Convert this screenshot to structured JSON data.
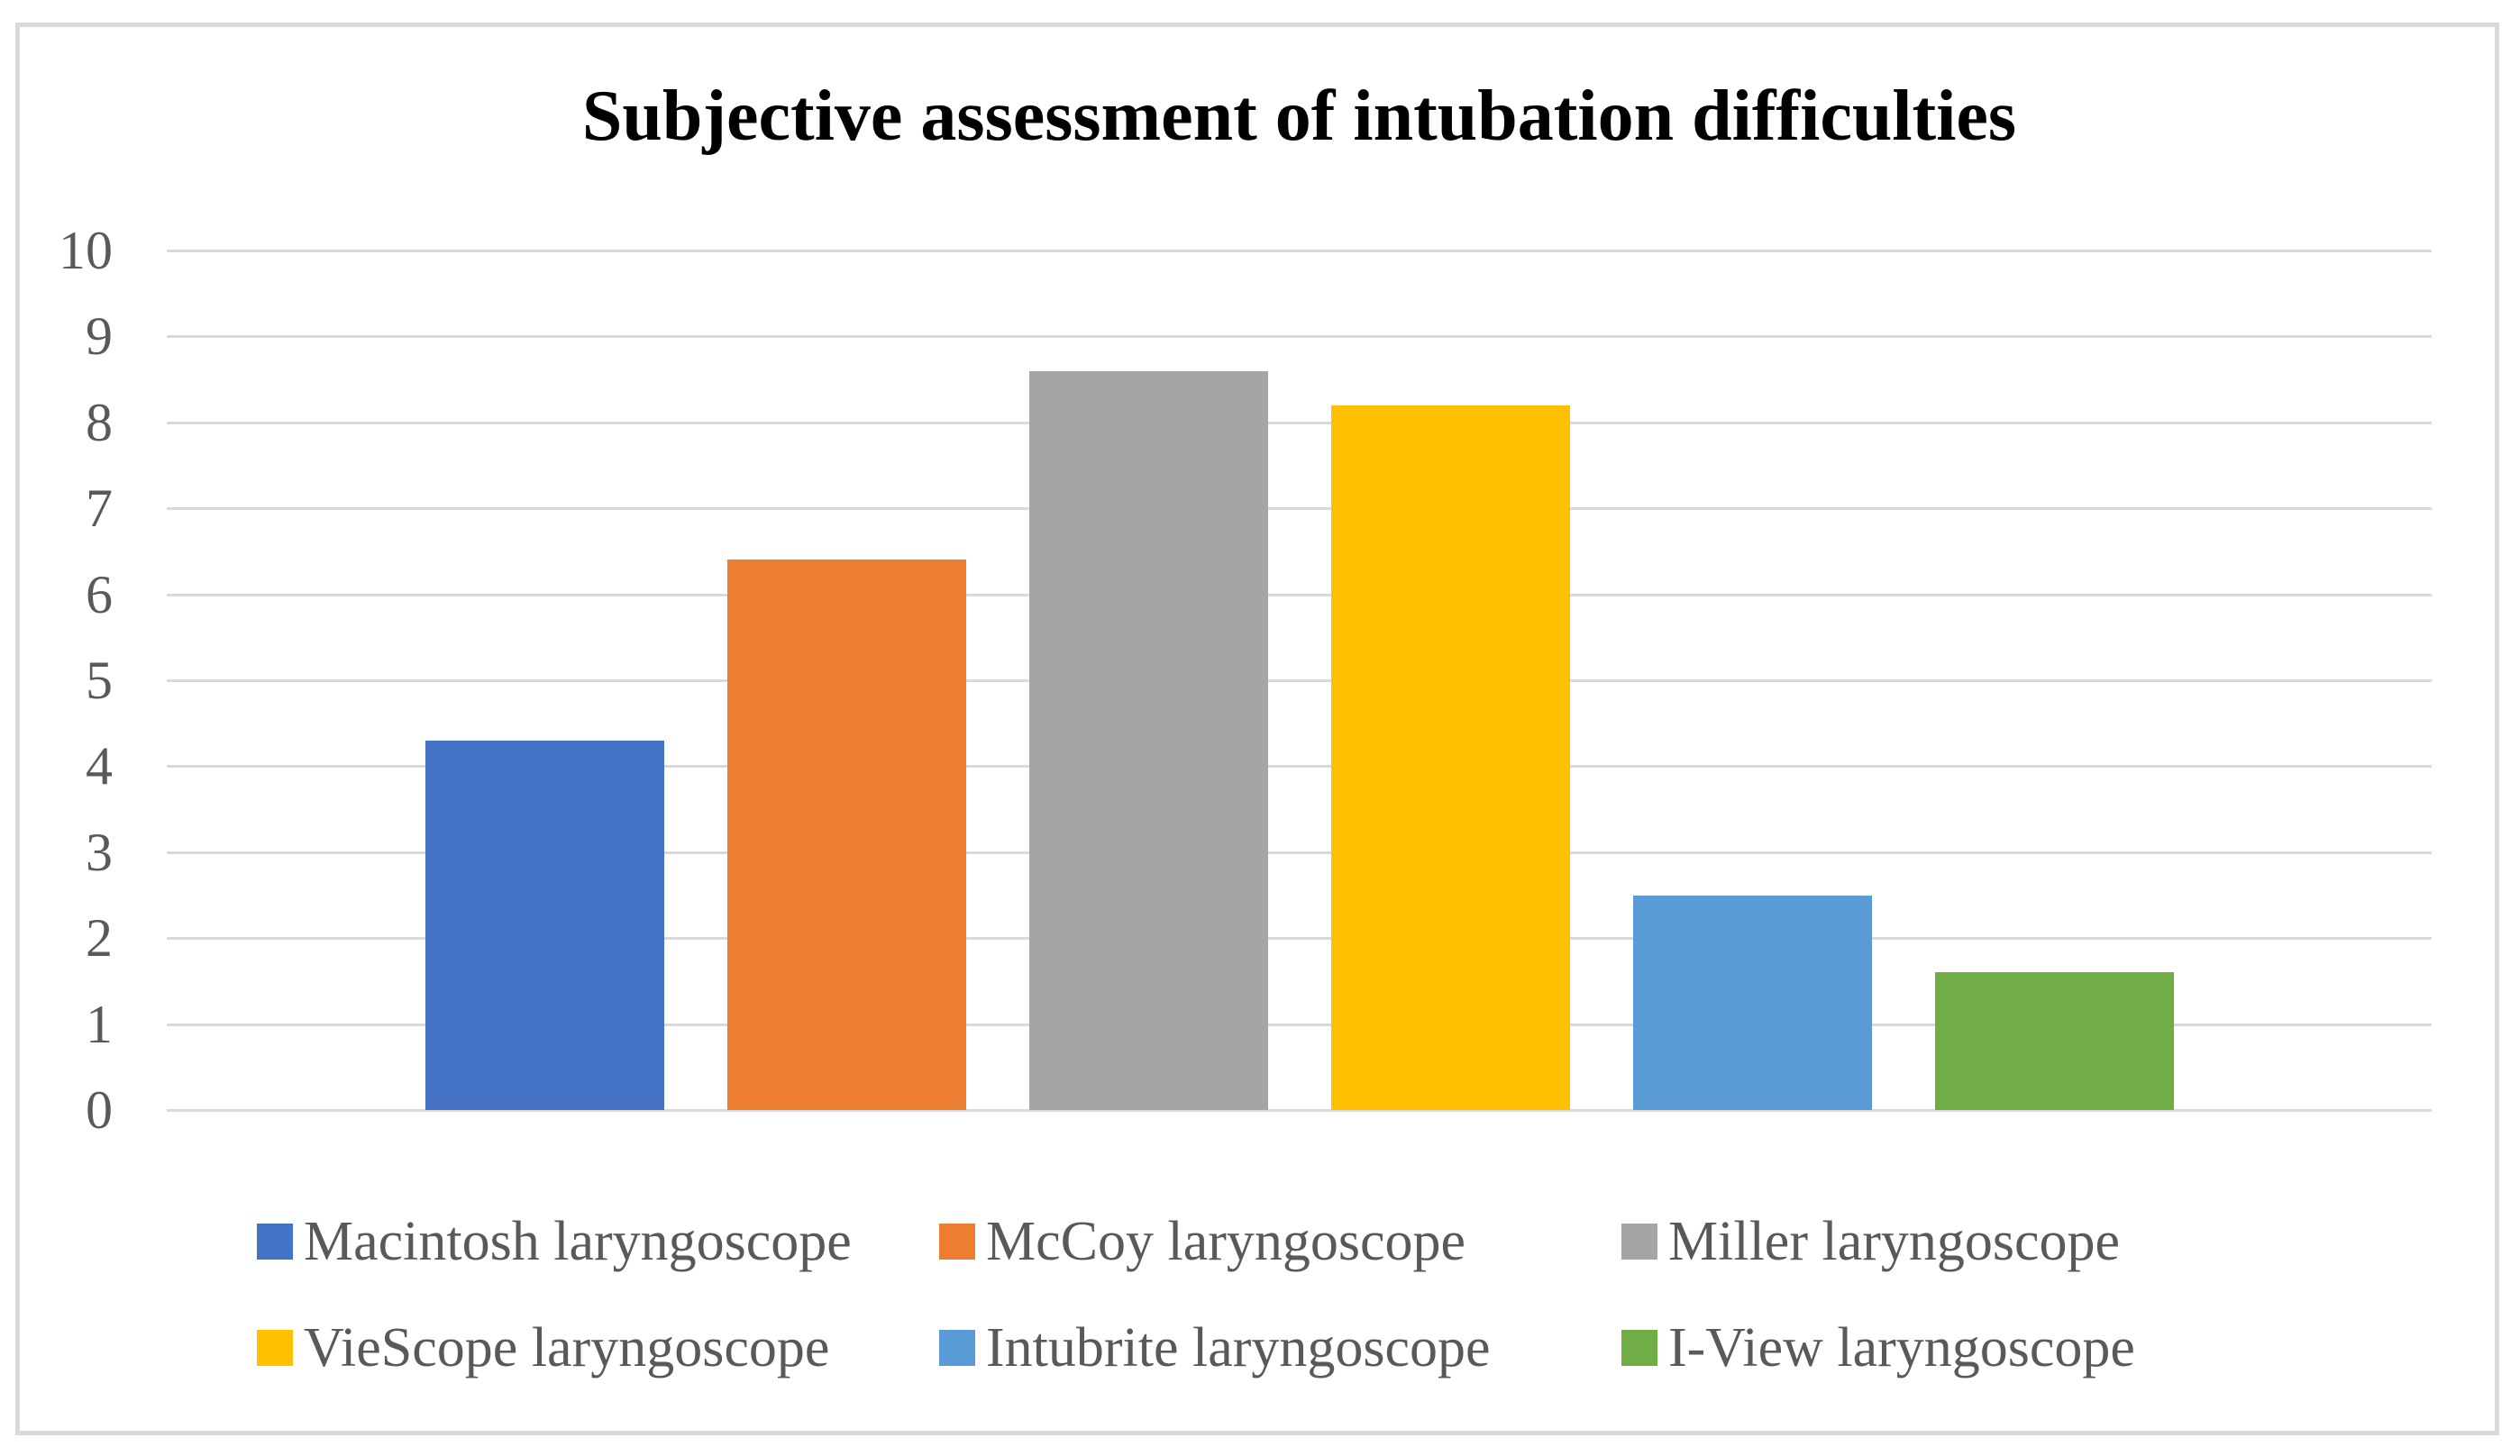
{
  "chart_data": {
    "type": "bar",
    "title": "Subjective assessment of intubation difficulties",
    "categories": [
      "Macintosh laryngoscope",
      "McCoy laryngoscope",
      "Miller laryngoscope",
      "VieScope laryngoscope",
      "Intubrite laryngoscope",
      "I-View laryngoscope"
    ],
    "values": [
      4.3,
      6.4,
      8.6,
      8.2,
      2.5,
      1.6
    ],
    "colors": [
      "#4472C4",
      "#ED7D31",
      "#A5A5A5",
      "#FFC000",
      "#5B9BD5",
      "#70AD47"
    ],
    "xlabel": "",
    "ylabel": "",
    "ylim": [
      0,
      10
    ],
    "yticks": [
      0,
      1,
      2,
      3,
      4,
      5,
      6,
      7,
      8,
      9,
      10
    ],
    "grid": true,
    "gridline_color": "#D9D9D9",
    "tick_label_color": "#595959",
    "legend_position": "bottom",
    "legend_rows": 2,
    "legend_text_color": "#595959"
  }
}
